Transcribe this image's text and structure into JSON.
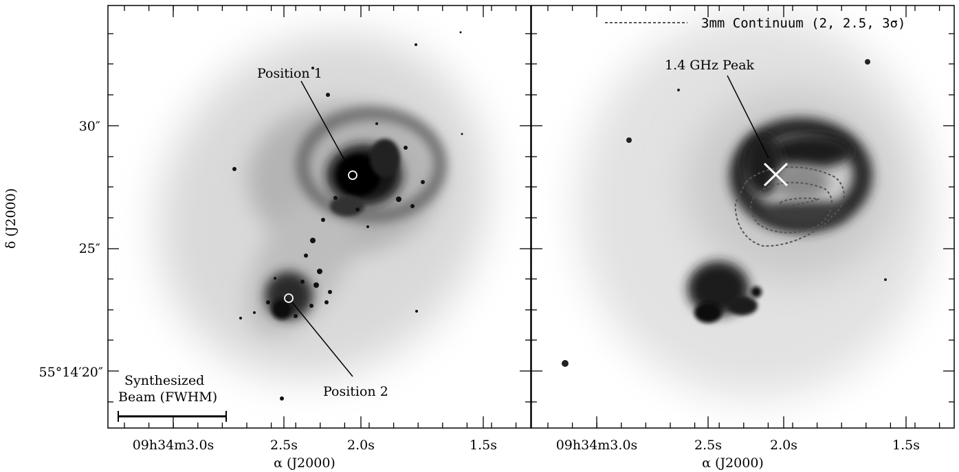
{
  "figure": {
    "left_panel": {
      "annotations": {
        "position1": "Position 1",
        "position2": "Position 2",
        "beam_line1": "Synthesized",
        "beam_line2": "Beam (FWHM)"
      }
    },
    "right_panel": {
      "legend": "3mm Continuum (2, 2.5, 3σ)",
      "peak_label": "1.4 GHz Peak"
    },
    "yaxis": {
      "label": "δ (J2000)",
      "ticks": [
        "30″",
        "25″",
        "55°14′20″"
      ]
    },
    "xaxis": {
      "label": "α (J2000)",
      "ticks": [
        "09h34m3.0s",
        "2.5s",
        "2.0s",
        "1.5s"
      ]
    },
    "colors": {
      "frame": "#000000",
      "background": "#ffffff",
      "contour": "#555555"
    }
  }
}
